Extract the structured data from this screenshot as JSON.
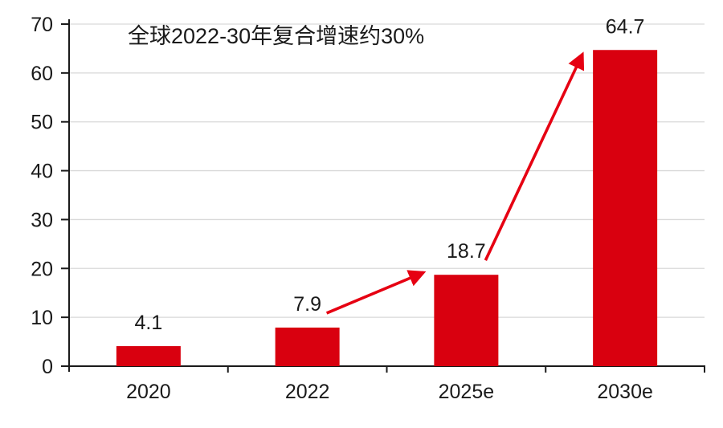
{
  "chart_data": {
    "type": "bar",
    "title": "",
    "annotation": "全球2022-30年复合增速约30%",
    "categories": [
      "2020",
      "2022",
      "2025e",
      "2030e"
    ],
    "values": [
      4.1,
      7.9,
      18.7,
      64.7
    ],
    "value_labels": [
      "4.1",
      "7.9",
      "18.7",
      "64.7"
    ],
    "xlabel": "",
    "ylabel": "",
    "ylim": [
      0,
      70
    ],
    "yticks": [
      0,
      10,
      20,
      30,
      40,
      50,
      60,
      70
    ],
    "grid": true,
    "legend": false,
    "arrows": [
      {
        "from_index": 1,
        "to_index": 2
      },
      {
        "from_index": 2,
        "to_index": 3
      }
    ],
    "colors": {
      "bar": "#d9000f",
      "arrow": "#e60012",
      "gridline": "#d9d9d9",
      "axis": "#1a1a1a",
      "text": "#1a1a1a",
      "background": "#ffffff"
    }
  }
}
